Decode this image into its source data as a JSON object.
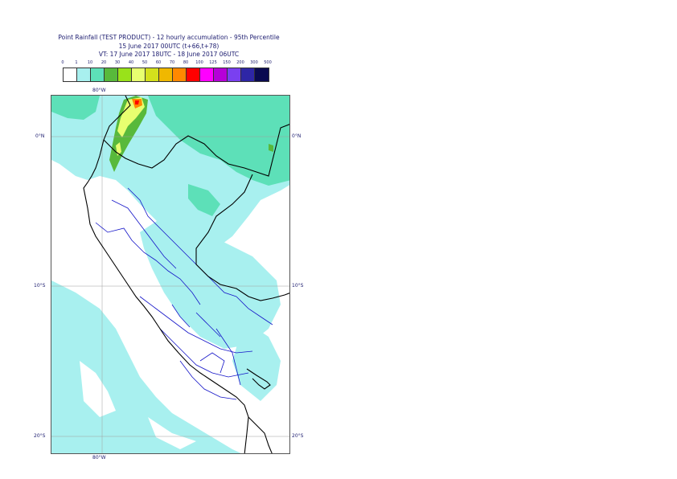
{
  "title": {
    "line1": "Point Rainfall (TEST PRODUCT) - 12 hourly accumulation - 95th Percentile",
    "line2": "15 June 2017 00UTC (t+66,t+78)",
    "line3": "VT: 17 June 2017 18UTC - 18 June 2017 06UTC"
  },
  "legend": {
    "ticks": [
      "0",
      "1",
      "10",
      "20",
      "30",
      "40",
      "50",
      "60",
      "70",
      "80",
      "100",
      "125",
      "150",
      "200",
      "300",
      "500"
    ],
    "colors": [
      "#ffffff",
      "#a8f0ef",
      "#5de0b8",
      "#58b93b",
      "#99e21a",
      "#e8ff70",
      "#d4e01c",
      "#f0b800",
      "#ff8800",
      "#ff0000",
      "#ff00ff",
      "#b600d8",
      "#7a40f0",
      "#2e26a6",
      "#0a0a50"
    ]
  },
  "map": {
    "colors": {
      "light_cyan": "#a8f0ef",
      "teal": "#5de0b8",
      "green": "#58b93b",
      "yellow": "#e8ff70",
      "orange": "#ff8800",
      "red": "#ff0000",
      "border": "#000000",
      "regions": "#1414c8",
      "grid": "#9e9e9e"
    }
  },
  "axes": {
    "top_lon": "80°W",
    "bottom_lon": "80°W",
    "lat_0_left": "0°N",
    "lat_0_right": "0°N",
    "lat_10_left": "10°S",
    "lat_10_right": "10°S",
    "lat_20_left": "20°S",
    "lat_20_right": "20°S"
  }
}
